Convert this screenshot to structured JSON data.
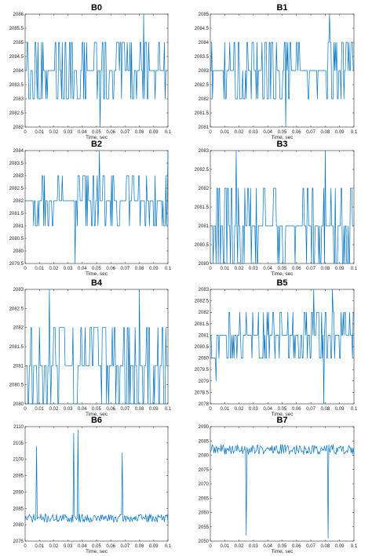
{
  "chart_data": [
    {
      "type": "line",
      "title": "B0",
      "xlabel": "Time, sec",
      "xlim": [
        0,
        0.1
      ],
      "ylim": [
        2082,
        2086
      ],
      "xticks": [
        "0",
        "0.01",
        "0.02",
        "0.03",
        "0.04",
        "0.05",
        "0.06",
        "0.07",
        "0.08",
        "0.09",
        "0.1"
      ],
      "yticks": [
        "2082",
        "2082.5",
        "2083",
        "2083.5",
        "2084",
        "2084.5",
        "2085",
        "2085.5",
        "2086"
      ],
      "levels": [
        2083,
        2084,
        2085
      ],
      "base": 2084,
      "spikes": [
        {
          "x": 0.0525,
          "y": 2082
        },
        {
          "x": 0.083,
          "y": 2086
        }
      ],
      "seed": 11,
      "color": "#0072BD"
    },
    {
      "type": "line",
      "title": "B1",
      "xlabel": "Time, sec",
      "xlim": [
        0,
        0.1
      ],
      "ylim": [
        2081,
        2085
      ],
      "xticks": [
        "0",
        "0.01",
        "0.02",
        "0.03",
        "0.04",
        "0.05",
        "0.06",
        "0.07",
        "0.08",
        "0.09",
        "0.1"
      ],
      "yticks": [
        "2081",
        "2081.5",
        "2082",
        "2082.5",
        "2083",
        "2083.5",
        "2084",
        "2084.5",
        "2085"
      ],
      "levels": [
        2082,
        2083,
        2084
      ],
      "base": 2083,
      "spikes": [
        {
          "x": 0.0525,
          "y": 2081
        },
        {
          "x": 0.083,
          "y": 2085
        }
      ],
      "seed": 23,
      "color": "#0072BD"
    },
    {
      "type": "line",
      "title": "B2",
      "xlabel": "Time, sec",
      "xlim": [
        0,
        0.1
      ],
      "ylim": [
        2079.5,
        2084
      ],
      "xticks": [
        "0",
        "0.01",
        "0.02",
        "0.03",
        "0.04",
        "0.05",
        "0.06",
        "0.07",
        "0.08",
        "0.09",
        "0.1"
      ],
      "yticks": [
        "2079.5",
        "2080",
        "2080.5",
        "2081",
        "2081.5",
        "2082",
        "2082.5",
        "2083",
        "2083.5",
        "2084"
      ],
      "levels": [
        2081,
        2082,
        2083
      ],
      "base": 2082,
      "spikes": [
        {
          "x": 0.035,
          "y": 2079.5
        },
        {
          "x": 0.052,
          "y": 2084
        },
        {
          "x": 0.1,
          "y": 2084
        }
      ],
      "seed": 37,
      "color": "#0072BD"
    },
    {
      "type": "line",
      "title": "B3",
      "xlabel": "Time, sec",
      "xlim": [
        0,
        0.1
      ],
      "ylim": [
        2080,
        2083
      ],
      "xticks": [
        "0",
        "0.01",
        "0.02",
        "0.03",
        "0.04",
        "0.05",
        "0.06",
        "0.07",
        "0.08",
        "0.09",
        "0.1"
      ],
      "yticks": [
        "2080",
        "2080.5",
        "2081",
        "2081.5",
        "2082",
        "2082.5",
        "2083"
      ],
      "levels": [
        2080,
        2081,
        2082
      ],
      "base": 2081,
      "spikes": [
        {
          "x": 0.018,
          "y": 2083
        },
        {
          "x": 0.08,
          "y": 2083
        }
      ],
      "seed": 41,
      "color": "#0072BD"
    },
    {
      "type": "line",
      "title": "B4",
      "xlabel": "Time, sec",
      "xlim": [
        0,
        0.1
      ],
      "ylim": [
        2080,
        2083
      ],
      "xticks": [
        "0",
        "0.01",
        "0.02",
        "0.03",
        "0.04",
        "0.05",
        "0.06",
        "0.07",
        "0.08",
        "0.09",
        "0.1"
      ],
      "yticks": [
        "2080",
        "2080.5",
        "2081",
        "2081.5",
        "2082",
        "2082.5",
        "2083"
      ],
      "levels": [
        2080,
        2081,
        2082
      ],
      "base": 2081,
      "spikes": [
        {
          "x": 0.017,
          "y": 2083
        },
        {
          "x": 0.08,
          "y": 2083
        }
      ],
      "seed": 53,
      "color": "#0072BD"
    },
    {
      "type": "line",
      "title": "B5",
      "xlabel": "Time, sec",
      "xlim": [
        0,
        0.1
      ],
      "ylim": [
        2078,
        2083
      ],
      "xticks": [
        "0",
        "0.01",
        "0.02",
        "0.03",
        "0.04",
        "0.05",
        "0.06",
        "0.07",
        "0.08",
        "0.09",
        "0.1"
      ],
      "yticks": [
        "2078",
        "2078.5",
        "2079",
        "2079.5",
        "2080",
        "2080.5",
        "2081",
        "2081.5",
        "2082",
        "2082.5",
        "2083"
      ],
      "levels": [
        2080,
        2081,
        2082
      ],
      "base": 2081,
      "spikes": [
        {
          "x": 0.004,
          "y": 2079
        },
        {
          "x": 0.072,
          "y": 2083
        },
        {
          "x": 0.079,
          "y": 2078
        },
        {
          "x": 0.085,
          "y": 2083
        }
      ],
      "seed": 67,
      "color": "#0072BD"
    },
    {
      "type": "line",
      "title": "B6",
      "xlabel": "Time, sec",
      "xlim": [
        0,
        0.1
      ],
      "ylim": [
        2075,
        2110
      ],
      "xticks": [
        "0",
        "0.01",
        "0.02",
        "0.03",
        "0.04",
        "0.05",
        "0.06",
        "0.07",
        "0.08",
        "0.09",
        "0.1"
      ],
      "yticks": [
        "2075",
        "2080",
        "2085",
        "2090",
        "2095",
        "2100",
        "2105",
        "2110"
      ],
      "base": 2082,
      "noise": 1.3,
      "spikes": [
        {
          "x": 0.008,
          "y": 2104
        },
        {
          "x": 0.034,
          "y": 2108
        },
        {
          "x": 0.037,
          "y": 2109
        },
        {
          "x": 0.068,
          "y": 2102
        }
      ],
      "seed": 71,
      "color": "#0072BD"
    },
    {
      "type": "line",
      "title": "B7",
      "xlabel": "Time, sec",
      "xlim": [
        0,
        0.1
      ],
      "ylim": [
        2050,
        2090
      ],
      "xticks": [
        "0",
        "0.01",
        "0.02",
        "0.03",
        "0.04",
        "0.05",
        "0.06",
        "0.07",
        "0.08",
        "0.09",
        "0.1"
      ],
      "yticks": [
        "2050",
        "2055",
        "2060",
        "2065",
        "2070",
        "2075",
        "2080",
        "2085",
        "2090"
      ],
      "base": 2082,
      "noise": 1.8,
      "spikes": [
        {
          "x": 0.025,
          "y": 2052
        },
        {
          "x": 0.082,
          "y": 2051
        }
      ],
      "seed": 89,
      "color": "#0072BD"
    }
  ]
}
